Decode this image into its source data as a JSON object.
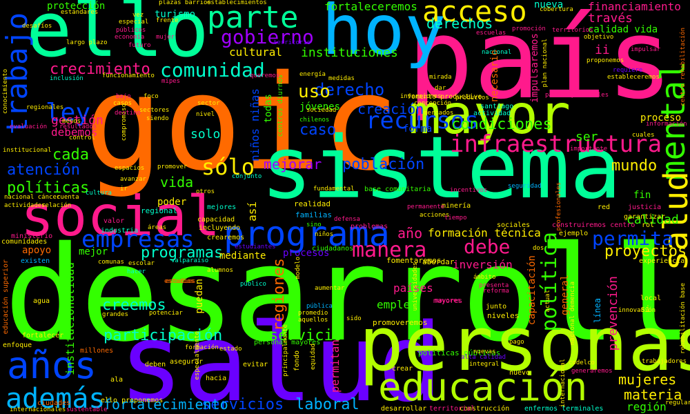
{
  "words": {
    "goic": "goic",
    "desarrollo": "desarrollo",
    "pais": "país",
    "sistema": "sistema",
    "salud": "salud",
    "personas": "personas",
    "ello": "ello",
    "hoy": "hoy",
    "mayor": "mayor",
    "social": "social",
    "programa": "programa",
    "educacion": "educación",
    "anos": "años",
    "ademas": "además",
    "parte": "parte",
    "acceso": "acceso",
    "trabajo": "trabajo",
    "mental": "mental",
    "infraestructura": "infraestructura",
    "empresas": "empresas",
    "ley": "ley",
    "recursos": "recursos",
    "comunidad": "comunidad",
    "gobierno": "gobierno",
    "crecimiento": "crecimiento",
    "derecho": "derecho",
    "manera": "manera",
    "politica": "política",
    "permita": "permita",
    "atencion": "atención",
    "politicas": "políticas",
    "solo_accent": "sólo",
    "servicio": "servicio",
    "servicios": "servicios",
    "fortalecimiento": "fortalecimiento",
    "participacion": "participación",
    "creemos": "creemos",
    "programas": "programas",
    "debe": "debe",
    "proyectos": "proyectos",
    "regiones": "regiones",
    "mujeres": "mujeres",
    "materia": "materia",
    "laboral": "laboral",
    "uso": "uso",
    "caso": "caso",
    "cada": "cada",
    "mundo": "mundo",
    "condiciones": "condiciones",
    "poblacion": "población",
    "mejorar": "mejorar",
    "creacion": "creación",
    "derechos": "derechos",
    "instituciones": "instituciones",
    "cultural": "cultural",
    "fortaleceremos": "fortaleceremos",
    "financiamiento": "financiamiento",
    "traves": "través",
    "calidad_vida": "calidad vida",
    "calidad": "calidad",
    "formacion_tecnica": "formación técnica",
    "inversion": "inversión",
    "vida": "vida",
    "solo": "solo",
    "gestion": "gestión",
    "debemos": "debemos",
    "proceso": "proceso",
    "ser": "ser",
    "ano": "año",
    "prevencion": "prevención",
    "paises": "países",
    "region": "región",
    "empleo": "empleo",
    "forma": "forma",
    "jovenes": "jóvenes",
    "ninos_ninas": "niños niñas",
    "todas": "todas",
    "apoyo": "apoyo",
    "mejor": "mejor",
    "mediante": "mediante",
    "institucionalidad": "institucionalidad",
    "permitan": "permitan",
    "procesos": "procesos",
    "puedan": "puedan",
    "turismo": "turismo",
    "nueva": "nueva",
    "proteccion": "protección",
    "estandares": "estándares",
    "poder": "poder",
    "asi": "así",
    "ii": "ii",
    "capacitacion": "capacitación",
    "impulsaremos": "impulsaremos",
    "necesario": "necesario",
    "fin": "fin",
    "familias": "familias",
    "realidad": "realidad",
    "mejores": "mejores",
    "capacidad": "capacidad",
    "incluyendo": "incluyendo",
    "crearemos": "crearemos",
    "ciudadanos": "ciudadanos",
    "politicas_publicas": "políticas públicas",
    "enfermos_terminales": "enfermos terminales",
    "personas_mayores": "personas mayores",
    "fomento_productivo": "fomento productivo",
    "base_comunitaria": "base comunitaria",
    "centros_diurnos": "centros diurnos",
    "santiago": "santiago",
    "actividad": "actividad",
    "regional": "regional",
    "industria": "industria",
    "valor": "valor",
    "sociales": "sociales",
    "justicia": "justicia",
    "garantizar": "garantizar",
    "rol": "rol",
    "red": "red",
    "experiencia": "experiencia",
    "ejemplo": "ejemplo",
    "construiremos_centro": "construiremos centro",
    "promoveremos": "promoveremos",
    "fomentaremos": "fomentaremos",
    "abordar": "abordar",
    "niveles": "niveles",
    "junto": "junto",
    "mayores": "mayores",
    "local": "local",
    "si": "si",
    "linea": "línea",
    "general": "general",
    "educacion_superior": "educación superior",
    "ministerio": "ministerio",
    "comunidades": "comunidades",
    "existen": "existen",
    "agua": "agua",
    "fortalecer": "fortalecer",
    "enfoque": "enfoque",
    "ciudades": "ciudades",
    "internacionales": "internacionales",
    "sustentable": "sustentable",
    "millones": "millones",
    "ello_proponemos": "ello proponemos",
    "ala": "ala",
    "deben": "deben",
    "asegurar": "asegurar",
    "hacia": "hacia",
    "evitar": "evitar",
    "fondo": "fondo",
    "crear": "crear",
    "nuevo": "nuevo",
    "construccion": "construcción",
    "territorial": "territorial",
    "desarrollar": "desarrollar",
    "pago": "pago",
    "codelco": "codelco",
    "alta_calidad": "alta calidad",
    "generaremos": "generaremos",
    "nacional": "nacional",
    "impulsar": "impulsar",
    "objetivo": "objetivo",
    "cobertura": "cobertura",
    "territorios": "territorios",
    "planes": "planes",
    "requiere": "requiere",
    "estableceremos": "estableceremos",
    "proponemos": "proponemos",
    "paseos_peatonales": "paseos peatonales",
    "centro_rehabilitacion": "centro rehabilitación",
    "informacion": "información",
    "cuales": "cuales",
    "importante": "importante",
    "seguridad": "seguridad",
    "incentivos": "incentivos",
    "mineria": "minería",
    "permanente": "permanente",
    "acciones": "acciones",
    "tiempo": "tiempo",
    "defensa": "defensa",
    "problemas": "problemas",
    "sino": "sino",
    "ninos": "niños",
    "estudiantes": "estudiantes",
    "escolar": "escolar",
    "valparaiso": "valparaíso",
    "comunas": "comunas",
    "hacer": "hacer",
    "estudios": "estudios",
    "potenciar": "potenciar",
    "grandes": "grandes",
    "publico": "público",
    "aumentar": "aumentar",
    "promedio": "promedio",
    "aquellos": "aquellos",
    "sido": "sido",
    "publica": "pública",
    "cultura": "cultura",
    "areas": "áreas",
    "espacios": "espacios",
    "promover": "promover",
    "sectores": "sectores",
    "siendo": "siendo",
    "nivel": "nivel",
    "conjunto": "conjunto",
    "chilenos": "chilenos",
    "fundamental": "fundamental",
    "nacional_cancer": "nacional cáncer",
    "actividades": "actividades",
    "relacion": "relación",
    "cuenta": "cuenta",
    "institucional": "institucional",
    "evaluacion": "evaluación",
    "resultados": "resultados",
    "menos": "menos",
    "total": "total",
    "regionales": "regionales",
    "casos": "casos",
    "foco": "foco",
    "sector": "sector",
    "inclusion": "inclusión",
    "funcionamiento": "funcionamiento",
    "largo_plazo": "largo plazo",
    "futuro": "futuro",
    "especial": "especial",
    "mujer": "mujer",
    "territorio": "territorio",
    "plazas_barrios": "plazas barrios",
    "establecimientos": "establecimientos",
    "desafios": "desafíos",
    "vez": "vez",
    "tener": "tener",
    "frente": "frente",
    "escuelas": "escuelas",
    "promocion": "promoción",
    "energia": "energía",
    "medidas": "medidas",
    "queremos": "queremos",
    "mirada": "mirada",
    "dar": "dar",
    "productos": "productos",
    "oportunidades": "oportunidades",
    "inversiones": "inversiones",
    "sociedad": "sociedad",
    "concepcion": "concepción",
    "mercados": "mercados",
    "reforma": "reforma",
    "presenta": "presenta",
    "ambito": "ámbito",
    "dos": "dos",
    "universidades": "universidades",
    "profesionales": "profesionales",
    "trabajadores": "trabajadores",
    "rehabilitacion_base": "rehabilitación base",
    "regular": "regular",
    "otros": "otros",
    "alimentacion": "alimentación",
    "diseno": "diseño",
    "modelo": "modelo",
    "equidad": "equidad",
    "tecnologia": "tecnología",
    "acceso_salud": "acceso salud",
    "contexto": "contexto",
    "puedan2": "puedan",
    "plan_nacional": "plan nacional",
    "nacional_demencia": "nacional demencia",
    "mayor_parte": "mayor parte",
    "innovacion": "innovación",
    "internacional": "internacional",
    "integral": "integral",
    "nuevas": "nuevas",
    "mantener": "mantener",
    "actual": "actual",
    "primer": "primer",
    "fondos": "fondos",
    "compromiso": "compromiso",
    "destino": "destino",
    "avanzar": "avanzar",
    "ir": "ir",
    "control": "control",
    "bajo": "bajo",
    "publicos": "públicos",
    "economia": "economía",
    "mipes": "mipes",
    "desafio": "desafío",
    "conocimiento": "conocimiento",
    "principalmente": "principalmente",
    "estado": "estado",
    "especialmente": "especialmente",
    "formacion": "formación",
    "alumnos": "alumnos",
    "cambio": "cambio",
    "pasos": "pasos",
    "entregar": "entregar",
    "apoyar": "apoyar",
    "recuperar": "recuperar"
  },
  "colors": {
    "green": "#33ff00",
    "orange": "#ff6a00",
    "pink": "#ff1a8c",
    "teal": "#00ff99",
    "violet": "#6a00ff",
    "blue": "#0044ff",
    "sky": "#00b3ff",
    "lime": "#b3ff00",
    "yellow": "#ffee00",
    "magenta": "#ff00cc",
    "red": "#ff0033",
    "aqua": "#00ffcc",
    "purple": "#a100ff"
  }
}
